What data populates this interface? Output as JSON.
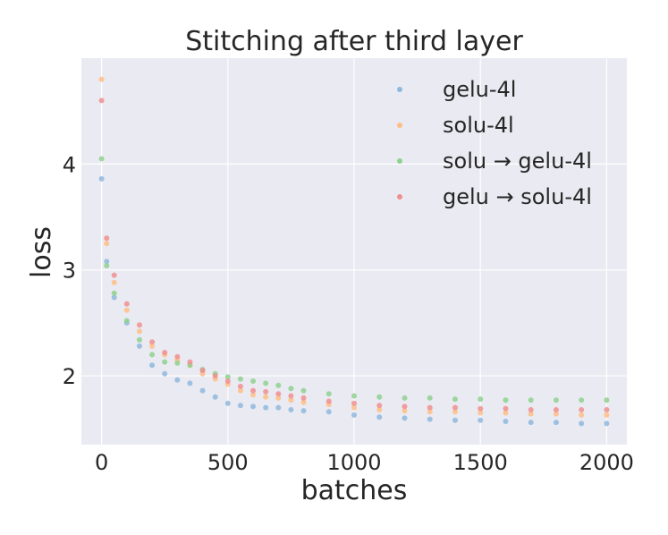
{
  "chart_data": {
    "type": "scatter",
    "title": "Stitching after third layer",
    "xlabel": "batches",
    "ylabel": "loss",
    "xlim": [
      -80,
      2080
    ],
    "ylim": [
      1.35,
      5.0
    ],
    "xticks": [
      0,
      500,
      1000,
      1500,
      2000
    ],
    "yticks": [
      2,
      3,
      4
    ],
    "grid": true,
    "legend_position": "top-right",
    "colors": {
      "background": "#eaeaf2",
      "grid": "#ffffff",
      "gelu-4l": "#8fb8de",
      "solu-4l": "#ffbe86",
      "solu-gelu-4l": "#8fd18f",
      "gelu-solu-4l": "#f08f8f"
    },
    "series": [
      {
        "name": "gelu-4l",
        "x": [
          0,
          20,
          50,
          100,
          150,
          200,
          250,
          300,
          350,
          400,
          450,
          500,
          550,
          600,
          650,
          700,
          750,
          800,
          900,
          1000,
          1100,
          1200,
          1300,
          1400,
          1500,
          1600,
          1700,
          1800,
          1900,
          2000
        ],
        "y": [
          3.86,
          3.08,
          2.74,
          2.5,
          2.28,
          2.1,
          2.02,
          1.96,
          1.93,
          1.86,
          1.8,
          1.74,
          1.72,
          1.71,
          1.7,
          1.7,
          1.68,
          1.67,
          1.66,
          1.63,
          1.61,
          1.6,
          1.59,
          1.58,
          1.58,
          1.57,
          1.56,
          1.56,
          1.55,
          1.55
        ]
      },
      {
        "name": "solu-4l",
        "x": [
          0,
          20,
          50,
          100,
          150,
          200,
          250,
          300,
          350,
          400,
          450,
          500,
          550,
          600,
          650,
          700,
          750,
          800,
          900,
          1000,
          1100,
          1200,
          1300,
          1400,
          1500,
          1600,
          1700,
          1800,
          1900,
          2000
        ],
        "y": [
          4.8,
          3.25,
          2.88,
          2.62,
          2.42,
          2.28,
          2.2,
          2.15,
          2.1,
          2.02,
          1.97,
          1.92,
          1.86,
          1.82,
          1.8,
          1.79,
          1.77,
          1.75,
          1.73,
          1.7,
          1.68,
          1.67,
          1.66,
          1.66,
          1.65,
          1.65,
          1.64,
          1.64,
          1.63,
          1.63
        ]
      },
      {
        "name": "solu → gelu-4l",
        "x": [
          0,
          20,
          50,
          100,
          150,
          200,
          250,
          300,
          350,
          400,
          450,
          500,
          550,
          600,
          650,
          700,
          750,
          800,
          900,
          1000,
          1100,
          1200,
          1300,
          1400,
          1500,
          1600,
          1700,
          1800,
          1900,
          2000
        ],
        "y": [
          4.05,
          3.04,
          2.78,
          2.52,
          2.34,
          2.2,
          2.13,
          2.12,
          2.1,
          2.06,
          2.02,
          1.99,
          1.97,
          1.95,
          1.93,
          1.91,
          1.88,
          1.86,
          1.83,
          1.81,
          1.8,
          1.79,
          1.79,
          1.78,
          1.78,
          1.77,
          1.77,
          1.77,
          1.77,
          1.77
        ]
      },
      {
        "name": "gelu → solu-4l",
        "x": [
          0,
          20,
          50,
          100,
          150,
          200,
          250,
          300,
          350,
          400,
          450,
          500,
          550,
          600,
          650,
          700,
          750,
          800,
          900,
          1000,
          1100,
          1200,
          1300,
          1400,
          1500,
          1600,
          1700,
          1800,
          1900,
          2000
        ],
        "y": [
          4.6,
          3.3,
          2.95,
          2.68,
          2.48,
          2.32,
          2.22,
          2.18,
          2.13,
          2.05,
          2.0,
          1.95,
          1.9,
          1.86,
          1.85,
          1.83,
          1.81,
          1.79,
          1.76,
          1.74,
          1.72,
          1.71,
          1.7,
          1.7,
          1.69,
          1.69,
          1.68,
          1.68,
          1.68,
          1.68
        ]
      }
    ]
  }
}
